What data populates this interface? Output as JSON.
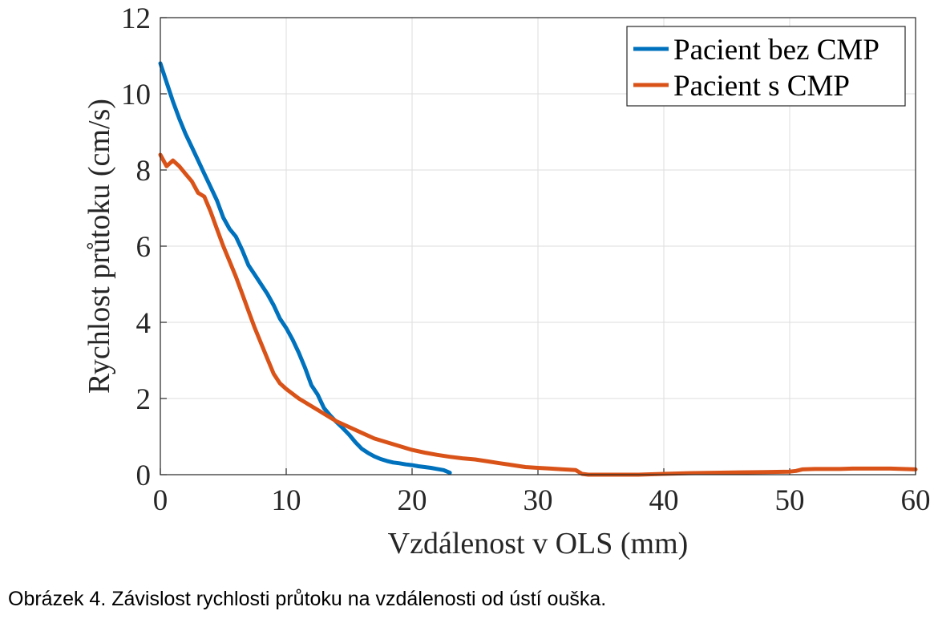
{
  "caption": "Obrázek 4. Závislost rychlosti průtoku na vzdálenosti od ústí ouška.",
  "chart_data": {
    "type": "line",
    "title": "",
    "xlabel": "Vzdálenost v OLS (mm)",
    "ylabel": "Rychlost průtoku (cm/s)",
    "xlim": [
      0,
      60
    ],
    "ylim": [
      0,
      12
    ],
    "xticks": [
      0,
      10,
      20,
      30,
      40,
      50,
      60
    ],
    "yticks": [
      0,
      2,
      4,
      6,
      8,
      10,
      12
    ],
    "grid": true,
    "legend_position": "top-right",
    "series": [
      {
        "name": "Pacient bez CMP",
        "color": "#0072BD",
        "x": [
          0,
          0.5,
          1,
          1.5,
          2,
          2.5,
          3,
          3.5,
          4,
          4.5,
          5,
          5.5,
          6,
          6.5,
          7,
          7.5,
          8,
          8.5,
          9,
          9.5,
          10,
          10.5,
          11,
          11.5,
          12,
          12.5,
          13,
          13.5,
          14,
          14.5,
          15,
          15.5,
          16,
          16.5,
          17,
          17.5,
          18,
          18.5,
          19,
          19.5,
          20,
          20.5,
          21,
          21.5,
          22,
          22.5,
          23
        ],
        "y": [
          10.8,
          10.3,
          9.8,
          9.35,
          8.95,
          8.6,
          8.25,
          7.9,
          7.55,
          7.2,
          6.75,
          6.45,
          6.25,
          5.9,
          5.5,
          5.25,
          5.0,
          4.75,
          4.45,
          4.1,
          3.85,
          3.55,
          3.2,
          2.8,
          2.35,
          2.1,
          1.75,
          1.55,
          1.38,
          1.22,
          1.05,
          0.85,
          0.68,
          0.57,
          0.48,
          0.41,
          0.36,
          0.32,
          0.3,
          0.27,
          0.25,
          0.22,
          0.2,
          0.18,
          0.15,
          0.12,
          0.05
        ]
      },
      {
        "name": "Pacient s CMP",
        "color": "#D95319",
        "x": [
          0,
          0.5,
          1,
          1.5,
          2,
          2.5,
          3,
          3.5,
          4,
          4.5,
          5,
          5.5,
          6,
          6.5,
          7,
          7.5,
          8,
          8.5,
          9,
          9.5,
          10,
          11,
          12,
          13,
          14,
          15,
          16,
          17,
          18,
          19,
          20,
          21,
          22,
          23,
          24,
          25,
          26,
          27,
          28,
          29,
          30,
          31,
          32,
          33,
          33.5,
          34,
          35,
          36,
          37,
          38,
          39,
          40,
          42,
          44,
          46,
          48,
          50,
          50.5,
          51,
          52,
          53,
          54,
          55,
          56,
          57,
          58,
          59,
          60
        ],
        "y": [
          8.4,
          8.1,
          8.25,
          8.1,
          7.9,
          7.7,
          7.4,
          7.3,
          6.9,
          6.45,
          6.0,
          5.6,
          5.2,
          4.75,
          4.3,
          3.85,
          3.45,
          3.05,
          2.65,
          2.4,
          2.25,
          2.0,
          1.8,
          1.6,
          1.4,
          1.25,
          1.1,
          0.95,
          0.85,
          0.75,
          0.65,
          0.58,
          0.52,
          0.47,
          0.43,
          0.4,
          0.35,
          0.3,
          0.25,
          0.2,
          0.18,
          0.16,
          0.14,
          0.12,
          0.02,
          0.0,
          0.0,
          0.0,
          0.0,
          0.0,
          0.01,
          0.02,
          0.04,
          0.05,
          0.06,
          0.07,
          0.08,
          0.1,
          0.14,
          0.15,
          0.15,
          0.15,
          0.16,
          0.16,
          0.16,
          0.16,
          0.15,
          0.14
        ]
      }
    ]
  }
}
